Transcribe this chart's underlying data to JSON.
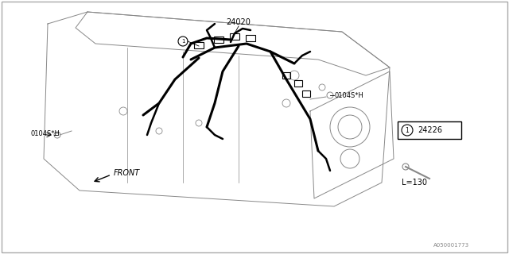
{
  "bg_color": "#ffffff",
  "line_color": "#000000",
  "thin_line_color": "#555555",
  "diagram_color": "#888888",
  "label_24020": "24020",
  "label_0104S_H_left": "0104S*H",
  "label_0104S_H_right": "0104S*H",
  "label_24226": "24226",
  "label_L130": "L=130",
  "label_front": "FRONT",
  "label_circle_1": "1",
  "label_bottom": "A050001773",
  "font_size_label": 7,
  "font_size_small": 6,
  "border_color": "#cccccc"
}
